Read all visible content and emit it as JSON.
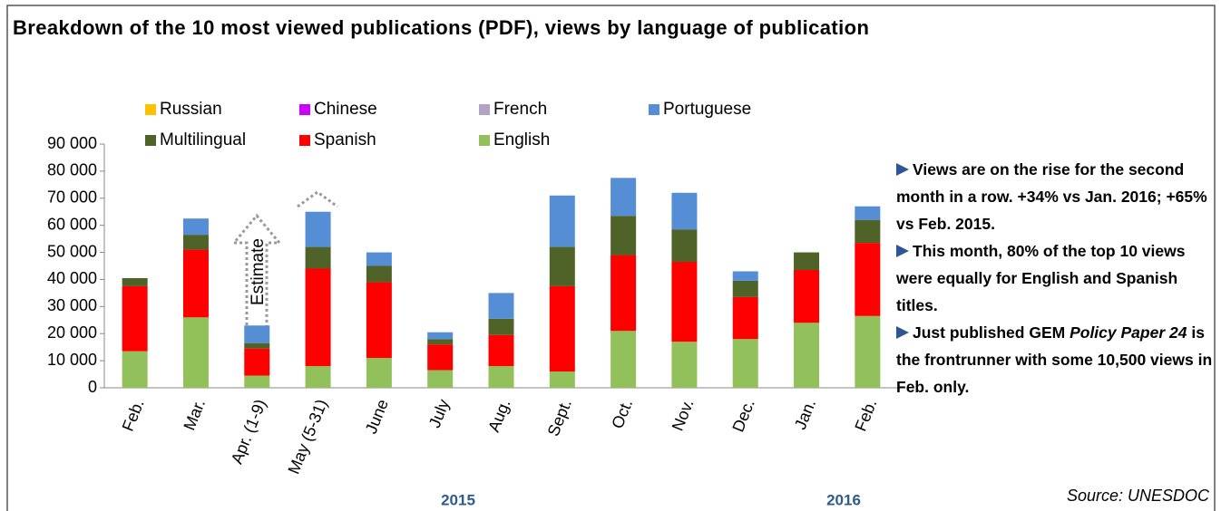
{
  "chart_data": {
    "type": "stacked_bar",
    "title": "Breakdown of the 10 most viewed publications (PDF), views by language of publication",
    "categories": [
      "Feb.",
      "Mar.",
      "Apr. (1-9)",
      "May (5-31)",
      "June",
      "July",
      "Aug.",
      "Sept.",
      "Oct.",
      "Nov.",
      "Dec.",
      "Jan.",
      "Feb."
    ],
    "legend_order": [
      6,
      5,
      4,
      3,
      2,
      1,
      0
    ],
    "series": [
      {
        "name": "English",
        "color": "#92c05a",
        "values": [
          13500,
          26000,
          4500,
          8000,
          11000,
          6500,
          8000,
          6000,
          21000,
          17000,
          18000,
          24000,
          26500
        ]
      },
      {
        "name": "Spanish",
        "color": "#ff0000",
        "values": [
          24000,
          25000,
          10000,
          36000,
          28000,
          9500,
          11500,
          31500,
          28000,
          29500,
          15500,
          19500,
          27000
        ]
      },
      {
        "name": "Multilingual",
        "color": "#4f6228",
        "values": [
          3000,
          5500,
          2000,
          8000,
          6000,
          2000,
          6000,
          14500,
          14500,
          12000,
          6000,
          6500,
          8500
        ]
      },
      {
        "name": "Portuguese",
        "color": "#558ed5",
        "values": [
          0,
          6000,
          6500,
          13000,
          5000,
          2500,
          9500,
          19000,
          14000,
          13500,
          3500,
          0,
          5000
        ]
      },
      {
        "name": "French",
        "color": "#b3a2c7",
        "values": [
          0,
          0,
          0,
          0,
          0,
          0,
          0,
          0,
          0,
          0,
          0,
          0,
          0
        ]
      },
      {
        "name": "Chinese",
        "color": "#cc00ff",
        "values": [
          0,
          0,
          0,
          0,
          0,
          0,
          0,
          0,
          0,
          0,
          0,
          0,
          0
        ]
      },
      {
        "name": "Russian",
        "color": "#ffc000",
        "values": [
          0,
          0,
          0,
          0,
          0,
          0,
          0,
          0,
          0,
          0,
          0,
          0,
          0
        ]
      }
    ],
    "ylim": [
      0,
      90000
    ],
    "yticks": [
      0,
      {
        "value": 10000,
        "label": "10 000"
      },
      {
        "value": 20000,
        "label": "20 000"
      },
      {
        "value": 30000,
        "label": "30 000"
      },
      {
        "value": 40000,
        "label": "40 000"
      },
      {
        "value": 50000,
        "label": "50 000"
      },
      {
        "value": 60000,
        "label": "60 000"
      },
      {
        "value": 70000,
        "label": "70 000"
      },
      {
        "value": 80000,
        "label": "80 000"
      },
      {
        "value": 90000,
        "label": "90 000"
      }
    ],
    "grid": false,
    "annotation": "Estimate",
    "years": [
      "2015",
      "2016"
    ],
    "source": "Source: UNESDOC",
    "notes": [
      [
        "Views are on the rise for the second month in a row. +34% vs Jan. 2016; +65% vs Feb. 2015."
      ],
      [
        "This month, 80% of the top 10 views were equally for English and Spanish titles."
      ],
      [
        "Just published GEM ",
        "Policy Paper 24",
        " is the frontrunner  with some 10,500 views in Feb. only."
      ]
    ]
  }
}
